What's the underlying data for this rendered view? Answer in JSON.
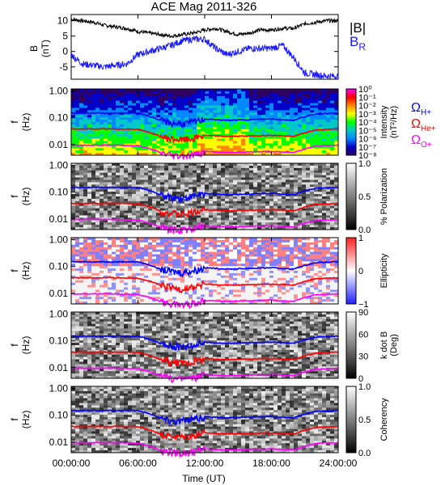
{
  "title": "ACE Mag 2011-326",
  "x_axis": {
    "label": "Time (UT)",
    "ticks": [
      "00:00:00",
      "06:00:00",
      "12:00:00",
      "18:00:00",
      "24:00:00"
    ],
    "range_hours": [
      0,
      24
    ]
  },
  "colors": {
    "B": "#000000",
    "BR": "#1a1aff",
    "H": "#0000ff",
    "He": "#ff0000",
    "O": "#ff00ff"
  },
  "panel1": {
    "ylabel_main": "B",
    "ylabel_unit": "(nT)",
    "legend": {
      "B": "|B|",
      "BR": "B",
      "BR_sub": "R"
    }
  },
  "freq_ylabel": {
    "main": "f",
    "unit": "(Hz)"
  },
  "freq_ticks": [
    "1.00",
    "0.10",
    "0.01"
  ],
  "gyro_legend": [
    {
      "symbol": "Ω",
      "sub": "H+",
      "color": "#0000ff"
    },
    {
      "symbol": "Ω",
      "sub": "He+",
      "color": "#ff0000"
    },
    {
      "symbol": "Ω",
      "sub": "O+",
      "color": "#ff00ff"
    }
  ],
  "colorbars": [
    {
      "label": "Intensity",
      "label2": "(nT²/Hz)",
      "ticks": [
        "10⁰",
        "10⁻¹",
        "10⁻²",
        "10⁻³",
        "10⁻⁴",
        "10⁻⁵",
        "10⁻⁶",
        "10⁻⁷",
        "10⁻⁸"
      ]
    },
    {
      "label": "% Polarization",
      "label2": "",
      "ticks": [
        "1.0",
        "0.5",
        "0.0"
      ]
    },
    {
      "label": "Ellipticity",
      "label2": "",
      "ticks": [
        "1",
        "0",
        "−1"
      ]
    },
    {
      "label": "k dot B",
      "label2": "(Deg)",
      "ticks": [
        "90",
        "60",
        "30",
        "0"
      ]
    },
    {
      "label": "Coherency",
      "label2": "",
      "ticks": [
        "1.0",
        "0.5",
        "0.0"
      ]
    }
  ],
  "chart_data": [
    {
      "type": "line",
      "title": "ACE Mag 2011-326",
      "xlabel": "Time (UT)",
      "ylabel": "B (nT)",
      "ylim": [
        -9,
        12
      ],
      "yticks": [
        10,
        5,
        0,
        -5
      ],
      "x_hours": [
        0,
        1,
        2,
        3,
        4,
        5,
        6,
        7,
        8,
        9,
        10,
        11,
        12,
        13,
        14,
        15,
        16,
        17,
        18,
        19,
        20,
        21,
        22,
        23,
        24
      ],
      "series": [
        {
          "name": "|B|",
          "values": [
            10.5,
            10,
            9.5,
            8.5,
            8,
            7.5,
            6.5,
            6,
            5.5,
            5,
            5.5,
            6,
            7,
            7.5,
            6.5,
            5.5,
            6,
            7,
            7,
            7.5,
            7.5,
            9,
            9.5,
            10,
            10
          ]
        },
        {
          "name": "B R",
          "values": [
            -1,
            -4,
            -4.5,
            -5,
            -4.5,
            -4,
            -1,
            0,
            1,
            2,
            3.5,
            4,
            4,
            1,
            -1,
            0,
            1,
            1,
            1,
            2,
            -2,
            -7,
            -7.5,
            -8,
            -8
          ]
        }
      ]
    },
    {
      "type": "heatmap",
      "note": "dynamic spectra, five panels",
      "panels": [
        "Intensity",
        "% Polarization",
        "Ellipticity",
        "k dot B",
        "Coherency"
      ],
      "yscale": "log",
      "ylabel": "f (Hz)",
      "ylim": [
        0.004,
        1.2
      ],
      "x_hours": [
        0,
        2,
        4,
        6,
        8,
        9,
        10,
        11,
        12,
        14,
        16,
        18,
        20,
        22,
        24
      ],
      "series": [
        {
          "name": "Ω H+",
          "values": [
            0.15,
            0.15,
            0.15,
            0.15,
            0.08,
            0.065,
            0.06,
            0.07,
            0.09,
            0.08,
            0.085,
            0.09,
            0.08,
            0.14,
            0.15
          ]
        },
        {
          "name": "Ω He+",
          "values": [
            0.038,
            0.038,
            0.038,
            0.037,
            0.02,
            0.016,
            0.015,
            0.017,
            0.022,
            0.02,
            0.021,
            0.022,
            0.02,
            0.035,
            0.038
          ]
        },
        {
          "name": "Ω O+",
          "values": [
            0.0095,
            0.0095,
            0.0095,
            0.009,
            0.005,
            0.004,
            0.0038,
            0.0042,
            0.0055,
            0.005,
            0.0053,
            0.0055,
            0.005,
            0.0088,
            0.0095
          ]
        }
      ]
    }
  ]
}
